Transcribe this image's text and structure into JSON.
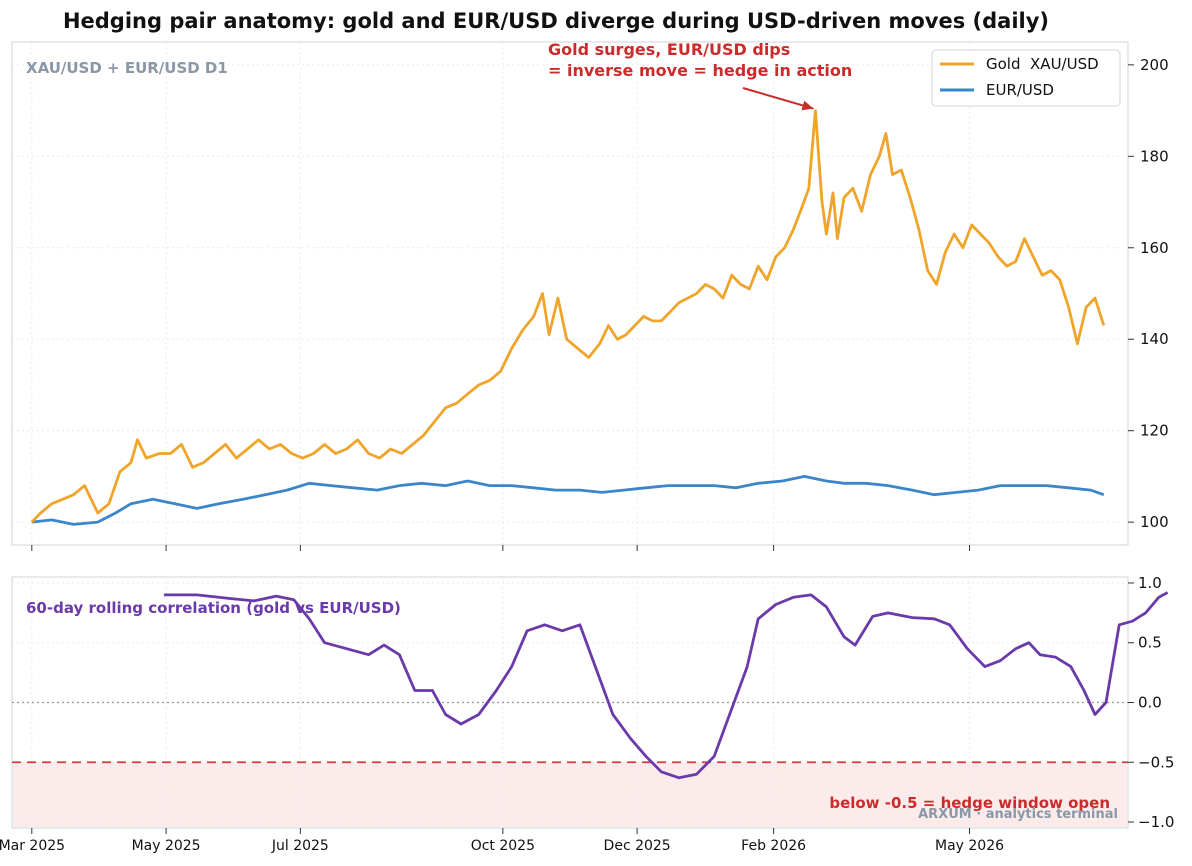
{
  "title": "Hedging pair anatomy: gold and EUR/USD diverge during USD-driven moves (daily)",
  "symbol_label": "XAU/USD + EUR/USD  D1",
  "annotation": {
    "line1": "Gold surges, EUR/USD dips",
    "line2": "= inverse move = hedge in action"
  },
  "watermark": "ARXUM · analytics terminal",
  "colors": {
    "gold": "#f0a42a",
    "eurusd": "#3a86c8",
    "correlation": "#6a3aaa",
    "alert": "#cc2b2b",
    "muted": "#8a97a6"
  },
  "chart_data": [
    {
      "type": "line",
      "panel": "price",
      "legend_position": "top-right",
      "y_range": [
        95,
        205
      ],
      "y_ticks": [
        100,
        120,
        140,
        160,
        180,
        200
      ],
      "x_range": [
        "2025-02-20",
        "2026-07-12"
      ],
      "x_ticks": [
        "2025-03-01",
        "2025-05-01",
        "2025-07-01",
        "2025-10-01",
        "2025-12-01",
        "2026-02-01",
        "2026-05-01"
      ],
      "x_tick_labels": [
        "Mar 2025",
        "May 2025",
        "Jul 2025",
        "Oct 2025",
        "Dec 2025",
        "Feb 2026",
        "May 2026"
      ],
      "grid": true,
      "series": [
        {
          "name": "Gold  XAU/USD",
          "color": "#f0a42a",
          "points": [
            [
              "2025-03-01",
              100
            ],
            [
              "2025-03-05",
              102
            ],
            [
              "2025-03-10",
              104
            ],
            [
              "2025-03-15",
              105
            ],
            [
              "2025-03-20",
              106
            ],
            [
              "2025-03-25",
              108
            ],
            [
              "2025-03-31",
              102
            ],
            [
              "2025-04-05",
              104
            ],
            [
              "2025-04-10",
              111
            ],
            [
              "2025-04-15",
              113
            ],
            [
              "2025-04-18",
              118
            ],
            [
              "2025-04-22",
              114
            ],
            [
              "2025-04-28",
              115
            ],
            [
              "2025-05-03",
              115
            ],
            [
              "2025-05-08",
              117
            ],
            [
              "2025-05-13",
              112
            ],
            [
              "2025-05-18",
              113
            ],
            [
              "2025-05-23",
              115
            ],
            [
              "2025-05-28",
              117
            ],
            [
              "2025-06-02",
              114
            ],
            [
              "2025-06-07",
              116
            ],
            [
              "2025-06-12",
              118
            ],
            [
              "2025-06-17",
              116
            ],
            [
              "2025-06-22",
              117
            ],
            [
              "2025-06-27",
              115
            ],
            [
              "2025-07-02",
              114
            ],
            [
              "2025-07-07",
              115
            ],
            [
              "2025-07-12",
              117
            ],
            [
              "2025-07-17",
              115
            ],
            [
              "2025-07-22",
              116
            ],
            [
              "2025-07-27",
              118
            ],
            [
              "2025-08-01",
              115
            ],
            [
              "2025-08-06",
              114
            ],
            [
              "2025-08-11",
              116
            ],
            [
              "2025-08-16",
              115
            ],
            [
              "2025-08-21",
              117
            ],
            [
              "2025-08-26",
              119
            ],
            [
              "2025-08-31",
              122
            ],
            [
              "2025-09-05",
              125
            ],
            [
              "2025-09-10",
              126
            ],
            [
              "2025-09-15",
              128
            ],
            [
              "2025-09-20",
              130
            ],
            [
              "2025-09-25",
              131
            ],
            [
              "2025-09-30",
              133
            ],
            [
              "2025-10-05",
              138
            ],
            [
              "2025-10-10",
              142
            ],
            [
              "2025-10-15",
              145
            ],
            [
              "2025-10-19",
              150
            ],
            [
              "2025-10-22",
              141
            ],
            [
              "2025-10-26",
              149
            ],
            [
              "2025-10-30",
              140
            ],
            [
              "2025-11-04",
              138
            ],
            [
              "2025-11-09",
              136
            ],
            [
              "2025-11-14",
              139
            ],
            [
              "2025-11-18",
              143
            ],
            [
              "2025-11-22",
              140
            ],
            [
              "2025-11-26",
              141
            ],
            [
              "2025-11-30",
              143
            ],
            [
              "2025-12-04",
              145
            ],
            [
              "2025-12-08",
              144
            ],
            [
              "2025-12-12",
              144
            ],
            [
              "2025-12-16",
              146
            ],
            [
              "2025-12-20",
              148
            ],
            [
              "2025-12-24",
              149
            ],
            [
              "2025-12-28",
              150
            ],
            [
              "2026-01-01",
              152
            ],
            [
              "2026-01-05",
              151
            ],
            [
              "2026-01-09",
              149
            ],
            [
              "2026-01-13",
              154
            ],
            [
              "2026-01-17",
              152
            ],
            [
              "2026-01-21",
              151
            ],
            [
              "2026-01-25",
              156
            ],
            [
              "2026-01-29",
              153
            ],
            [
              "2026-02-02",
              158
            ],
            [
              "2026-02-06",
              160
            ],
            [
              "2026-02-10",
              164
            ],
            [
              "2026-02-14",
              169
            ],
            [
              "2026-02-17",
              173
            ],
            [
              "2026-02-20",
              190
            ],
            [
              "2026-02-23",
              170
            ],
            [
              "2026-02-25",
              163
            ],
            [
              "2026-02-28",
              172
            ],
            [
              "2026-03-02",
              162
            ],
            [
              "2026-03-05",
              171
            ],
            [
              "2026-03-09",
              173
            ],
            [
              "2026-03-13",
              168
            ],
            [
              "2026-03-17",
              176
            ],
            [
              "2026-03-21",
              180
            ],
            [
              "2026-03-24",
              185
            ],
            [
              "2026-03-27",
              176
            ],
            [
              "2026-03-31",
              177
            ],
            [
              "2026-04-04",
              171
            ],
            [
              "2026-04-08",
              164
            ],
            [
              "2026-04-12",
              155
            ],
            [
              "2026-04-16",
              152
            ],
            [
              "2026-04-20",
              159
            ],
            [
              "2026-04-24",
              163
            ],
            [
              "2026-04-28",
              160
            ],
            [
              "2026-05-02",
              165
            ],
            [
              "2026-05-06",
              163
            ],
            [
              "2026-05-10",
              161
            ],
            [
              "2026-05-14",
              158
            ],
            [
              "2026-05-18",
              156
            ],
            [
              "2026-05-22",
              157
            ],
            [
              "2026-05-26",
              162
            ],
            [
              "2026-05-30",
              158
            ],
            [
              "2026-06-03",
              154
            ],
            [
              "2026-06-07",
              155
            ],
            [
              "2026-06-11",
              153
            ],
            [
              "2026-06-15",
              147
            ],
            [
              "2026-06-19",
              139
            ],
            [
              "2026-06-23",
              147
            ],
            [
              "2026-06-27",
              149
            ],
            [
              "2026-07-01",
              143
            ]
          ]
        },
        {
          "name": "EUR/USD",
          "color": "#3a86c8",
          "points": [
            [
              "2025-03-01",
              100
            ],
            [
              "2025-03-10",
              100.5
            ],
            [
              "2025-03-20",
              99.5
            ],
            [
              "2025-03-31",
              100
            ],
            [
              "2025-04-08",
              102
            ],
            [
              "2025-04-15",
              104
            ],
            [
              "2025-04-25",
              105
            ],
            [
              "2025-05-05",
              104
            ],
            [
              "2025-05-15",
              103
            ],
            [
              "2025-05-25",
              104
            ],
            [
              "2025-06-05",
              105
            ],
            [
              "2025-06-15",
              106
            ],
            [
              "2025-06-25",
              107
            ],
            [
              "2025-07-05",
              108.5
            ],
            [
              "2025-07-15",
              108
            ],
            [
              "2025-07-25",
              107.5
            ],
            [
              "2025-08-05",
              107
            ],
            [
              "2025-08-15",
              108
            ],
            [
              "2025-08-25",
              108.5
            ],
            [
              "2025-09-05",
              108
            ],
            [
              "2025-09-15",
              109
            ],
            [
              "2025-09-25",
              108
            ],
            [
              "2025-10-05",
              108
            ],
            [
              "2025-10-15",
              107.5
            ],
            [
              "2025-10-25",
              107
            ],
            [
              "2025-11-05",
              107
            ],
            [
              "2025-11-15",
              106.5
            ],
            [
              "2025-11-25",
              107
            ],
            [
              "2025-12-05",
              107.5
            ],
            [
              "2025-12-15",
              108
            ],
            [
              "2025-12-25",
              108
            ],
            [
              "2026-01-05",
              108
            ],
            [
              "2026-01-15",
              107.5
            ],
            [
              "2026-01-25",
              108.5
            ],
            [
              "2026-02-05",
              109
            ],
            [
              "2026-02-15",
              110
            ],
            [
              "2026-02-25",
              109
            ],
            [
              "2026-03-05",
              108.5
            ],
            [
              "2026-03-15",
              108.5
            ],
            [
              "2026-03-25",
              108
            ],
            [
              "2026-04-05",
              107
            ],
            [
              "2026-04-15",
              106
            ],
            [
              "2026-04-25",
              106.5
            ],
            [
              "2026-05-05",
              107
            ],
            [
              "2026-05-15",
              108
            ],
            [
              "2026-05-25",
              108
            ],
            [
              "2026-06-05",
              108
            ],
            [
              "2026-06-15",
              107.5
            ],
            [
              "2026-06-25",
              107
            ],
            [
              "2026-07-01",
              106
            ]
          ]
        }
      ],
      "annotation_point": [
        "2026-02-20",
        190
      ]
    },
    {
      "type": "line",
      "panel": "correlation",
      "y_range": [
        -1.05,
        1.05
      ],
      "y_ticks": [
        1.0,
        0.5,
        0.0,
        -0.5,
        -1.0
      ],
      "y_tick_labels": [
        "1.0",
        "0.5",
        "0.0",
        "−0.5",
        "−1.0"
      ],
      "title": "60-day rolling correlation (gold vs EUR/USD)",
      "threshold": -0.5,
      "threshold_label": "below -0.5 = hedge window open",
      "zero_line": true,
      "series": [
        {
          "name": "",
          "color": "#6a3aaa",
          "points": [
            [
              "2025-04-30",
              0.9
            ],
            [
              "2025-05-15",
              0.9
            ],
            [
              "2025-05-30",
              0.87
            ],
            [
              "2025-06-10",
              0.85
            ],
            [
              "2025-06-20",
              0.89
            ],
            [
              "2025-06-28",
              0.86
            ],
            [
              "2025-07-05",
              0.7
            ],
            [
              "2025-07-12",
              0.5
            ],
            [
              "2025-07-22",
              0.45
            ],
            [
              "2025-08-01",
              0.4
            ],
            [
              "2025-08-08",
              0.48
            ],
            [
              "2025-08-15",
              0.4
            ],
            [
              "2025-08-22",
              0.1
            ],
            [
              "2025-08-30",
              0.1
            ],
            [
              "2025-09-05",
              -0.1
            ],
            [
              "2025-09-12",
              -0.18
            ],
            [
              "2025-09-20",
              -0.1
            ],
            [
              "2025-09-28",
              0.1
            ],
            [
              "2025-10-05",
              0.3
            ],
            [
              "2025-10-12",
              0.6
            ],
            [
              "2025-10-20",
              0.65
            ],
            [
              "2025-10-28",
              0.6
            ],
            [
              "2025-11-05",
              0.65
            ],
            [
              "2025-11-12",
              0.3
            ],
            [
              "2025-11-20",
              -0.1
            ],
            [
              "2025-11-28",
              -0.3
            ],
            [
              "2025-12-05",
              -0.45
            ],
            [
              "2025-12-12",
              -0.58
            ],
            [
              "2025-12-20",
              -0.63
            ],
            [
              "2025-12-28",
              -0.6
            ],
            [
              "2026-01-05",
              -0.45
            ],
            [
              "2026-01-12",
              -0.1
            ],
            [
              "2026-01-20",
              0.3
            ],
            [
              "2026-01-25",
              0.7
            ],
            [
              "2026-02-02",
              0.82
            ],
            [
              "2026-02-10",
              0.88
            ],
            [
              "2026-02-18",
              0.9
            ],
            [
              "2026-02-25",
              0.8
            ],
            [
              "2026-03-05",
              0.55
            ],
            [
              "2026-03-10",
              0.48
            ],
            [
              "2026-03-18",
              0.72
            ],
            [
              "2026-03-25",
              0.75
            ],
            [
              "2026-04-05",
              0.71
            ],
            [
              "2026-04-15",
              0.7
            ],
            [
              "2026-04-22",
              0.65
            ],
            [
              "2026-04-30",
              0.45
            ],
            [
              "2026-05-08",
              0.3
            ],
            [
              "2026-05-15",
              0.35
            ],
            [
              "2026-05-22",
              0.45
            ],
            [
              "2026-05-28",
              0.5
            ],
            [
              "2026-06-02",
              0.4
            ],
            [
              "2026-06-09",
              0.38
            ],
            [
              "2026-06-16",
              0.3
            ],
            [
              "2026-06-22",
              0.1
            ],
            [
              "2026-06-27",
              -0.1
            ],
            [
              "2026-07-02",
              0.0
            ],
            [
              "2026-07-08",
              0.65
            ],
            [
              "2026-07-14",
              0.68
            ],
            [
              "2026-07-20",
              0.75
            ],
            [
              "2026-07-26",
              0.88
            ],
            [
              "2026-07-30",
              0.92
            ]
          ]
        }
      ]
    }
  ]
}
